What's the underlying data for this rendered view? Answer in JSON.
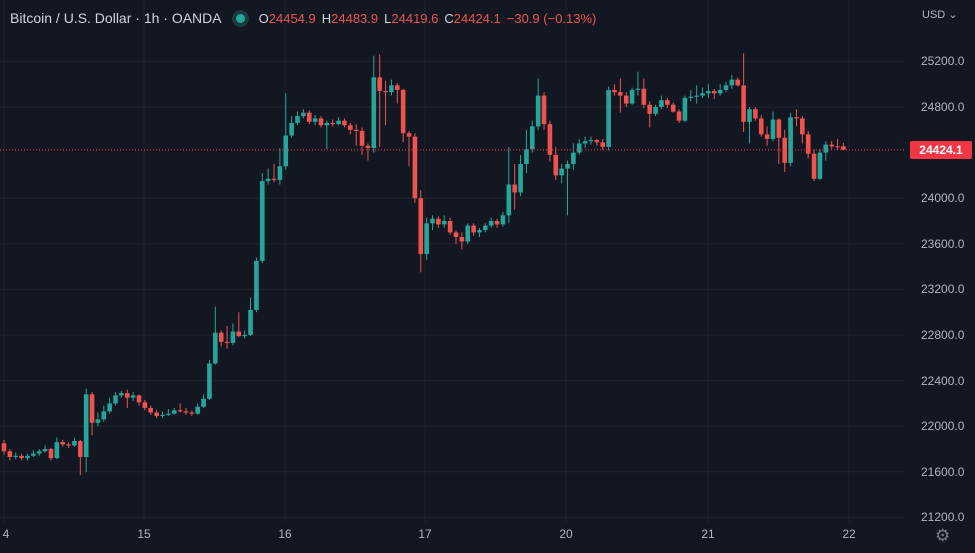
{
  "header": {
    "title": "Bitcoin / U.S. Dollar · 1h · OANDA",
    "ohlc": {
      "o_label": "O",
      "o": "24454.9",
      "h_label": "H",
      "h": "24483.9",
      "l_label": "L",
      "l": "24419.6",
      "c_label": "C",
      "c": "24424.1",
      "change": "−30.9 (−0.13%)"
    },
    "market_status_color": "#26a69a"
  },
  "axis": {
    "currency": "USD ⌄",
    "current_price_label": "24424.1",
    "y_ticks": [
      "25200.0",
      "24800.0",
      "24000.0",
      "23600.0",
      "23200.0",
      "22800.0",
      "22400.0",
      "22000.0",
      "21600.0",
      "21200.0"
    ],
    "x_ticks": [
      "4",
      "15",
      "16",
      "17",
      "20",
      "21",
      "22"
    ],
    "settings_icon": "gear-icon"
  },
  "colors": {
    "up": "#26a69a",
    "down": "#ef5350",
    "background": "#131722",
    "price_line": "#f23645"
  },
  "chart_data": {
    "type": "candlestick",
    "y_tick_values": [
      25200,
      24800,
      24000,
      23600,
      23200,
      22800,
      22400,
      22000,
      21600,
      21200
    ],
    "current_price": 24424.1,
    "x_day_ticks": [
      {
        "label": "4",
        "index": 0
      },
      {
        "label": "15",
        "index": 24
      },
      {
        "label": "16",
        "index": 48
      },
      {
        "label": "17",
        "index": 72
      },
      {
        "label": "20",
        "index": 96
      },
      {
        "label": "21",
        "index": 120
      },
      {
        "label": "22",
        "index": 144
      }
    ],
    "grid": true,
    "candles_ohlc": [
      [
        21850,
        21880,
        21750,
        21780
      ],
      [
        21780,
        21800,
        21700,
        21730
      ],
      [
        21730,
        21770,
        21710,
        21740
      ],
      [
        21740,
        21760,
        21700,
        21720
      ],
      [
        21720,
        21760,
        21700,
        21740
      ],
      [
        21740,
        21790,
        21730,
        21760
      ],
      [
        21760,
        21800,
        21740,
        21780
      ],
      [
        21780,
        21830,
        21770,
        21800
      ],
      [
        21800,
        21810,
        21700,
        21720
      ],
      [
        21720,
        21900,
        21710,
        21860
      ],
      [
        21860,
        21880,
        21820,
        21840
      ],
      [
        21840,
        21860,
        21810,
        21830
      ],
      [
        21830,
        21900,
        21820,
        21870
      ],
      [
        21870,
        21880,
        21570,
        21730
      ],
      [
        21730,
        22330,
        21600,
        22280
      ],
      [
        22280,
        22300,
        21920,
        22030
      ],
      [
        22030,
        22120,
        22000,
        22060
      ],
      [
        22060,
        22180,
        22040,
        22130
      ],
      [
        22130,
        22250,
        22110,
        22200
      ],
      [
        22200,
        22300,
        22180,
        22270
      ],
      [
        22270,
        22310,
        22250,
        22290
      ],
      [
        22290,
        22320,
        22160,
        22250
      ],
      [
        22250,
        22300,
        22220,
        22270
      ],
      [
        22270,
        22280,
        22180,
        22210
      ],
      [
        22210,
        22230,
        22140,
        22160
      ],
      [
        22160,
        22180,
        22100,
        22120
      ],
      [
        22120,
        22140,
        22070,
        22090
      ],
      [
        22090,
        22130,
        22070,
        22100
      ],
      [
        22100,
        22150,
        22090,
        22110
      ],
      [
        22110,
        22160,
        22100,
        22140
      ],
      [
        22140,
        22200,
        22120,
        22130
      ],
      [
        22130,
        22160,
        22100,
        22120
      ],
      [
        22120,
        22140,
        22090,
        22110
      ],
      [
        22110,
        22200,
        22100,
        22170
      ],
      [
        22170,
        22280,
        22160,
        22240
      ],
      [
        22240,
        22580,
        22230,
        22550
      ],
      [
        22550,
        23050,
        22540,
        22820
      ],
      [
        22820,
        22840,
        22700,
        22740
      ],
      [
        22740,
        22880,
        22680,
        22730
      ],
      [
        22730,
        22900,
        22710,
        22830
      ],
      [
        22830,
        23000,
        22780,
        22790
      ],
      [
        22790,
        22840,
        22770,
        22800
      ],
      [
        22800,
        23130,
        22790,
        23020
      ],
      [
        23020,
        23480,
        23000,
        23450
      ],
      [
        23450,
        24220,
        23430,
        24150
      ],
      [
        24150,
        24260,
        24120,
        24170
      ],
      [
        24170,
        24300,
        24140,
        24160
      ],
      [
        24160,
        24440,
        24120,
        24280
      ],
      [
        24280,
        24920,
        24250,
        24550
      ],
      [
        24550,
        24720,
        24530,
        24660
      ],
      [
        24660,
        24760,
        24640,
        24720
      ],
      [
        24720,
        24780,
        24700,
        24750
      ],
      [
        24750,
        24770,
        24650,
        24670
      ],
      [
        24670,
        24730,
        24640,
        24700
      ],
      [
        24700,
        24720,
        24620,
        24640
      ],
      [
        24640,
        24680,
        24430,
        24660
      ],
      [
        24660,
        24690,
        24630,
        24650
      ],
      [
        24650,
        24710,
        24640,
        24680
      ],
      [
        24680,
        24700,
        24620,
        24640
      ],
      [
        24640,
        24660,
        24560,
        24600
      ],
      [
        24600,
        24650,
        24460,
        24590
      ],
      [
        24590,
        24620,
        24380,
        24460
      ],
      [
        24460,
        24480,
        24330,
        24440
      ],
      [
        24440,
        25250,
        24400,
        25060
      ],
      [
        25060,
        25260,
        24450,
        24940
      ],
      [
        24940,
        25030,
        24640,
        24930
      ],
      [
        24930,
        25040,
        24900,
        24990
      ],
      [
        24990,
        25010,
        24830,
        24950
      ],
      [
        24950,
        24960,
        24490,
        24570
      ],
      [
        24570,
        24590,
        24280,
        24540
      ],
      [
        24540,
        24570,
        23960,
        24000
      ],
      [
        24000,
        24070,
        23350,
        23510
      ],
      [
        23510,
        23830,
        23460,
        23780
      ],
      [
        23780,
        23850,
        23720,
        23820
      ],
      [
        23820,
        23840,
        23740,
        23770
      ],
      [
        23770,
        23850,
        23740,
        23800
      ],
      [
        23800,
        23830,
        23680,
        23700
      ],
      [
        23700,
        23720,
        23600,
        23660
      ],
      [
        23660,
        23700,
        23550,
        23620
      ],
      [
        23620,
        23780,
        23600,
        23760
      ],
      [
        23760,
        23780,
        23670,
        23700
      ],
      [
        23700,
        23740,
        23660,
        23720
      ],
      [
        23720,
        23780,
        23700,
        23760
      ],
      [
        23760,
        23830,
        23740,
        23800
      ],
      [
        23800,
        23820,
        23740,
        23770
      ],
      [
        23770,
        23880,
        23750,
        23850
      ],
      [
        23850,
        24450,
        23780,
        24120
      ],
      [
        24120,
        24300,
        23900,
        24050
      ],
      [
        24050,
        24380,
        24020,
        24300
      ],
      [
        24300,
        24600,
        24220,
        24430
      ],
      [
        24430,
        24680,
        24400,
        24630
      ],
      [
        24630,
        25050,
        24600,
        24900
      ],
      [
        24900,
        24930,
        24600,
        24650
      ],
      [
        24650,
        24680,
        24320,
        24380
      ],
      [
        24380,
        24450,
        24160,
        24200
      ],
      [
        24200,
        24300,
        24130,
        24260
      ],
      [
        24260,
        24330,
        23850,
        24300
      ],
      [
        24300,
        24480,
        24250,
        24400
      ],
      [
        24400,
        24520,
        24380,
        24480
      ],
      [
        24480,
        24540,
        24440,
        24500
      ],
      [
        24500,
        24540,
        24470,
        24510
      ],
      [
        24510,
        24520,
        24460,
        24490
      ],
      [
        24490,
        24520,
        24420,
        24450
      ],
      [
        24450,
        24980,
        24420,
        24950
      ],
      [
        24950,
        25000,
        24900,
        24930
      ],
      [
        24930,
        25050,
        24750,
        24900
      ],
      [
        24900,
        24930,
        24800,
        24830
      ],
      [
        24830,
        24970,
        24820,
        24950
      ],
      [
        24950,
        25110,
        24900,
        24960
      ],
      [
        24960,
        25050,
        24790,
        24820
      ],
      [
        24820,
        24850,
        24620,
        24740
      ],
      [
        24740,
        24820,
        24720,
        24800
      ],
      [
        24800,
        24900,
        24780,
        24860
      ],
      [
        24860,
        24880,
        24790,
        24820
      ],
      [
        24820,
        24840,
        24750,
        24760
      ],
      [
        24760,
        24780,
        24660,
        24680
      ],
      [
        24680,
        24900,
        24670,
        24880
      ],
      [
        24880,
        24950,
        24850,
        24890
      ],
      [
        24890,
        24990,
        24830,
        24900
      ],
      [
        24900,
        24970,
        24880,
        24920
      ],
      [
        24920,
        25000,
        24880,
        24940
      ],
      [
        24940,
        24960,
        24870,
        24920
      ],
      [
        24920,
        25000,
        24900,
        24950
      ],
      [
        24950,
        25020,
        24930,
        24990
      ],
      [
        24990,
        25080,
        24960,
        25040
      ],
      [
        25040,
        25060,
        24980,
        24990
      ],
      [
        24990,
        25270,
        24580,
        24670
      ],
      [
        24670,
        24800,
        24480,
        24780
      ],
      [
        24780,
        24800,
        24680,
        24700
      ],
      [
        24700,
        24730,
        24540,
        24560
      ],
      [
        24560,
        24630,
        24460,
        24520
      ],
      [
        24520,
        24760,
        24500,
        24690
      ],
      [
        24690,
        24700,
        24300,
        24530
      ],
      [
        24530,
        24600,
        24230,
        24310
      ],
      [
        24310,
        24750,
        24280,
        24710
      ],
      [
        24710,
        24780,
        24630,
        24700
      ],
      [
        24700,
        24720,
        24480,
        24560
      ],
      [
        24560,
        24590,
        24350,
        24390
      ],
      [
        24390,
        24430,
        24150,
        24170
      ],
      [
        24170,
        24430,
        24160,
        24400
      ],
      [
        24400,
        24500,
        24330,
        24470
      ],
      [
        24470,
        24500,
        24430,
        24455
      ],
      [
        24455,
        24520,
        24420,
        24454.9
      ],
      [
        24454.9,
        24483.9,
        24419.6,
        24424.1
      ]
    ]
  }
}
